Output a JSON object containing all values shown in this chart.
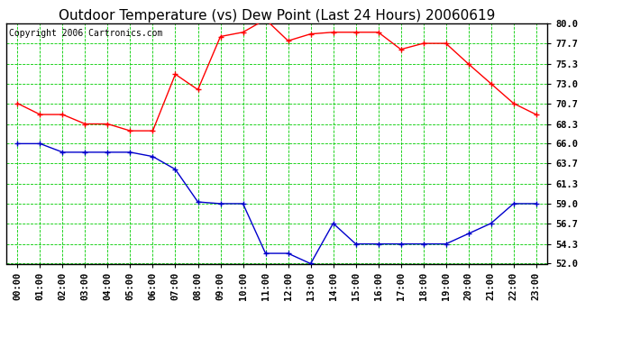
{
  "title": "Outdoor Temperature (vs) Dew Point (Last 24 Hours) 20060619",
  "copyright": "Copyright 2006 Cartronics.com",
  "hours": [
    "00:00",
    "01:00",
    "02:00",
    "03:00",
    "04:00",
    "05:00",
    "06:00",
    "07:00",
    "08:00",
    "09:00",
    "10:00",
    "11:00",
    "12:00",
    "13:00",
    "14:00",
    "15:00",
    "16:00",
    "17:00",
    "18:00",
    "19:00",
    "20:00",
    "21:00",
    "22:00",
    "23:00"
  ],
  "temp": [
    70.7,
    69.4,
    69.4,
    68.3,
    68.3,
    67.5,
    67.5,
    74.1,
    72.3,
    78.5,
    79.0,
    80.5,
    78.0,
    78.8,
    79.0,
    79.0,
    79.0,
    77.0,
    77.7,
    77.7,
    75.3,
    73.0,
    70.7,
    69.4
  ],
  "dew": [
    66.0,
    66.0,
    65.0,
    65.0,
    65.0,
    65.0,
    64.5,
    63.0,
    59.2,
    59.0,
    59.0,
    53.2,
    53.2,
    52.0,
    56.7,
    54.3,
    54.3,
    54.3,
    54.3,
    54.3,
    55.5,
    56.7,
    59.0,
    59.0
  ],
  "temp_color": "#ff0000",
  "dew_color": "#0000cc",
  "bg_color": "#ffffff",
  "plot_bg_color": "#ffffff",
  "grid_color": "#00cc00",
  "ylim": [
    52.0,
    80.0
  ],
  "yticks": [
    52.0,
    54.3,
    56.7,
    59.0,
    61.3,
    63.7,
    66.0,
    68.3,
    70.7,
    73.0,
    75.3,
    77.7,
    80.0
  ],
  "title_fontsize": 11,
  "copyright_fontsize": 7,
  "tick_fontsize": 7.5
}
